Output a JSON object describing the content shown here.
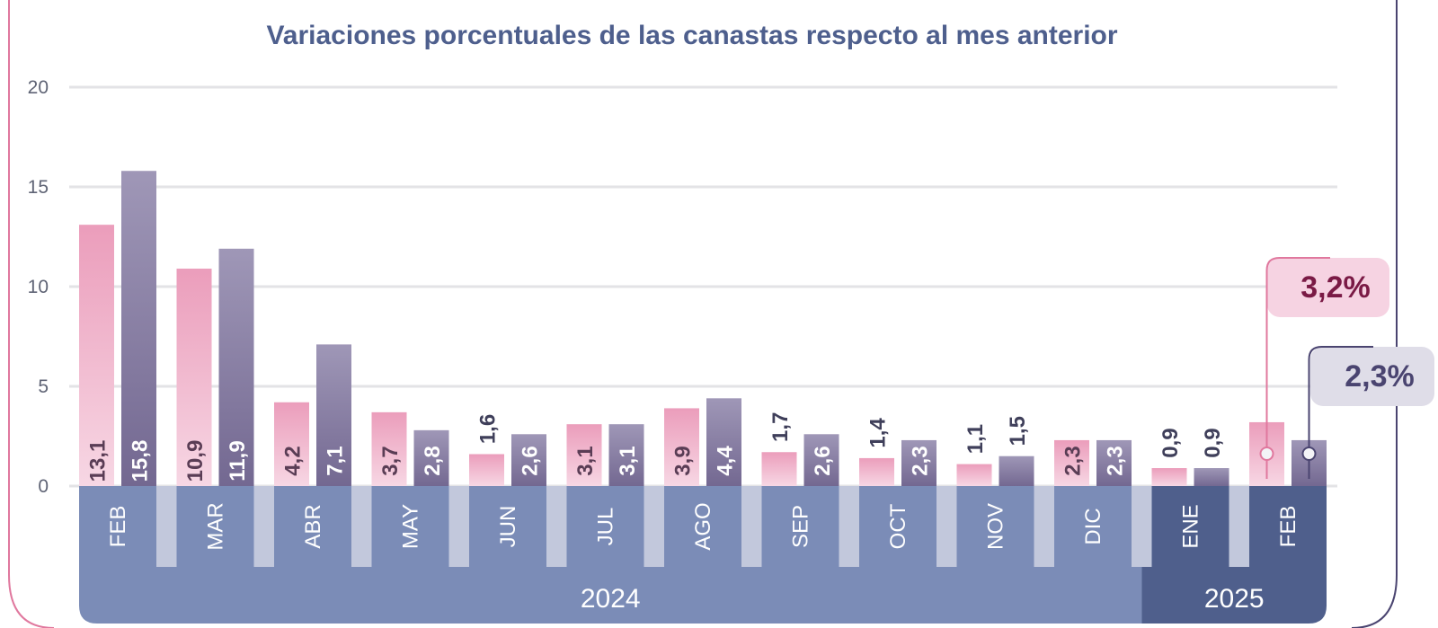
{
  "chart_data": {
    "type": "bar",
    "title": "Variaciones porcentuales de las canastas respecto al mes anterior",
    "ylim": [
      0,
      20
    ],
    "yticks": [
      "0",
      "5",
      "10",
      "15",
      "20"
    ],
    "grid": true,
    "categories": [
      "FEB",
      "MAR",
      "ABR",
      "MAY",
      "JUN",
      "JUL",
      "AGO",
      "SEP",
      "OCT",
      "NOV",
      "DIC",
      "ENE",
      "FEB"
    ],
    "years": [
      {
        "label": "2024",
        "months": 11
      },
      {
        "label": "2025",
        "months": 2
      }
    ],
    "series": [
      {
        "values": [
          13.1,
          10.9,
          4.2,
          3.7,
          1.6,
          3.1,
          3.9,
          1.7,
          1.4,
          1.1,
          2.3,
          0.9,
          3.2
        ],
        "labels": [
          "13,1",
          "10,9",
          "4,2",
          "3,7",
          "1,6",
          "3,1",
          "3,9",
          "1,7",
          "1,4",
          "1,1",
          "2,3",
          "0,9",
          ""
        ],
        "color": "#ec9fbd"
      },
      {
        "values": [
          15.8,
          11.9,
          7.1,
          2.8,
          2.6,
          3.1,
          4.4,
          2.6,
          2.3,
          1.5,
          2.3,
          0.9,
          2.3
        ],
        "labels": [
          "15,8",
          "11,9",
          "7,1",
          "2,8",
          "2,6",
          "3,1",
          "4,4",
          "2,6",
          "2,3",
          "1,5",
          "2,3",
          "0,9",
          ""
        ],
        "color": "#7d7099"
      }
    ],
    "callouts": [
      {
        "text": "3,2%",
        "series": 0,
        "color": "#7a1a45",
        "bg": "#f6d3e2"
      },
      {
        "text": "2,3%",
        "series": 1,
        "color": "#4a4470",
        "bg": "#dfdde8"
      }
    ],
    "colors": {
      "title": "#4e5f8d",
      "axis_text": "#5f6475",
      "grid": "#e3e3e6",
      "month_band_2024": "#7b8cb7",
      "month_band_2025": "#4f5f8c",
      "gap_fill": "#c2c8dc",
      "frame_left": "#e0789e",
      "frame_right": "#4a4470"
    }
  }
}
